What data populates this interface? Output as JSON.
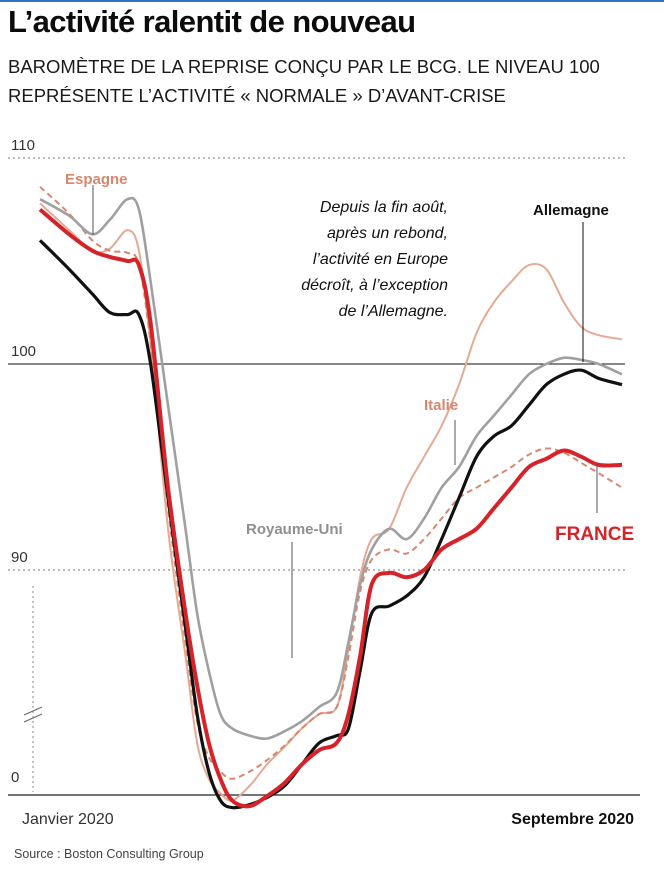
{
  "header": {
    "title": "L’activité ralentit de nouveau",
    "subtitle_lines": [
      "BAROMÈTRE DE LA REPRISE CONÇU PAR LE BCG. LE NIVEAU 100",
      "REPRÉSENTE L’ACTIVITÉ « NORMALE » D’AVANT-CRISE"
    ]
  },
  "chart_data": {
    "type": "line",
    "title": "L’activité ralentit de nouveau",
    "subtitle": "BAROMÈTRE DE LA REPRISE CONÇU PAR LE BCG. LE NIVEAU 100 REPRÉSENTE L’ACTIVITÉ « NORMALE » D’AVANT-CRISE",
    "y_ticks": [
      "110",
      "100",
      "90",
      "0"
    ],
    "ylim": [
      0,
      110
    ],
    "axis_break": true,
    "x_labels": [
      "Janvier 2020",
      "Septembre 2020"
    ],
    "grid": "dotted horizontal lines at 90 and 110, solid reference line at 100",
    "annotation": [
      "Depuis la fin août,",
      "après un rebond,",
      "l’activité en Europe",
      "décroît, à l’exception",
      "de l’Allemagne."
    ],
    "colors": {
      "france": "#d6232a",
      "allemagne": "#111111",
      "royaume_uni": "#a0a0a0",
      "espagne": "#d9866e",
      "italie": "#e5aa94"
    },
    "t": [
      0,
      0.05,
      0.09,
      0.12,
      0.15,
      0.17,
      0.19,
      0.22,
      0.25,
      0.27,
      0.29,
      0.31,
      0.33,
      0.36,
      0.39,
      0.42,
      0.45,
      0.48,
      0.51,
      0.53,
      0.55,
      0.57,
      0.6,
      0.63,
      0.66,
      0.69,
      0.72,
      0.75,
      0.78,
      0.81,
      0.84,
      0.87,
      0.9,
      0.93,
      0.96,
      1
    ],
    "series": [
      {
        "name": "FRANCE",
        "values": [
          107.5,
          106.3,
          105.5,
          105.2,
          105,
          104.8,
          102,
          94,
          87,
          82,
          78,
          75.5,
          74,
          73.6,
          74.3,
          75.2,
          76.5,
          77.5,
          78,
          80,
          84,
          89,
          89.8,
          89.5,
          90,
          91,
          91.5,
          92,
          93,
          94,
          95,
          95.4,
          95.8,
          95.5,
          95.1,
          95.1
        ]
      },
      {
        "name": "Allemagne",
        "values": [
          106,
          104.6,
          103.4,
          102.5,
          102.4,
          102.4,
          100,
          93.5,
          86,
          80,
          76,
          74,
          73.5,
          73.7,
          74.2,
          75,
          76.5,
          78,
          78.5,
          79,
          83,
          87,
          87.5,
          88.2,
          89.5,
          91.5,
          93.5,
          95.5,
          96.5,
          97,
          98,
          99,
          99.5,
          99.7,
          99.3,
          99
        ]
      },
      {
        "name": "Royaume-Uni",
        "values": [
          108,
          107.2,
          106.3,
          107,
          108,
          107.5,
          104,
          98,
          92,
          87,
          83,
          80,
          79,
          78.5,
          78.3,
          78.8,
          79.5,
          80.5,
          81.5,
          85,
          89,
          91,
          92,
          91.5,
          92.5,
          94,
          95,
          96.5,
          97.5,
          98.5,
          99.5,
          100,
          100.3,
          100.2,
          100,
          99.5
        ]
      },
      {
        "name": "Espagne",
        "values": [
          108.6,
          107.3,
          106,
          105.5,
          105.4,
          104.8,
          101,
          93,
          85,
          79.5,
          77,
          76,
          75.5,
          76,
          76.8,
          77.8,
          79,
          80,
          80.5,
          84,
          88.5,
          90.5,
          91,
          90.8,
          91.5,
          92.5,
          93.5,
          94,
          94.5,
          95,
          95.6,
          95.9,
          95.7,
          95.2,
          94.7,
          94
        ]
      },
      {
        "name": "Italie",
        "values": [
          107.8,
          106.5,
          105.5,
          105.6,
          106.5,
          105.5,
          101,
          92,
          84,
          78,
          75.5,
          74.5,
          74,
          75,
          76.5,
          77.7,
          79,
          80,
          80.5,
          84.5,
          89.5,
          91.5,
          92,
          94,
          95.5,
          97,
          99,
          101.5,
          103,
          104,
          104.8,
          104.6,
          103,
          101.8,
          101.4,
          101.2
        ]
      }
    ]
  },
  "labels": {
    "espagne": "Espagne",
    "allemagne": "Allemagne",
    "italie": "Italie",
    "royaume_uni": "Royaume-Uni",
    "france": "FRANCE"
  },
  "footer": {
    "source": "Source : Boston Consulting Group"
  }
}
